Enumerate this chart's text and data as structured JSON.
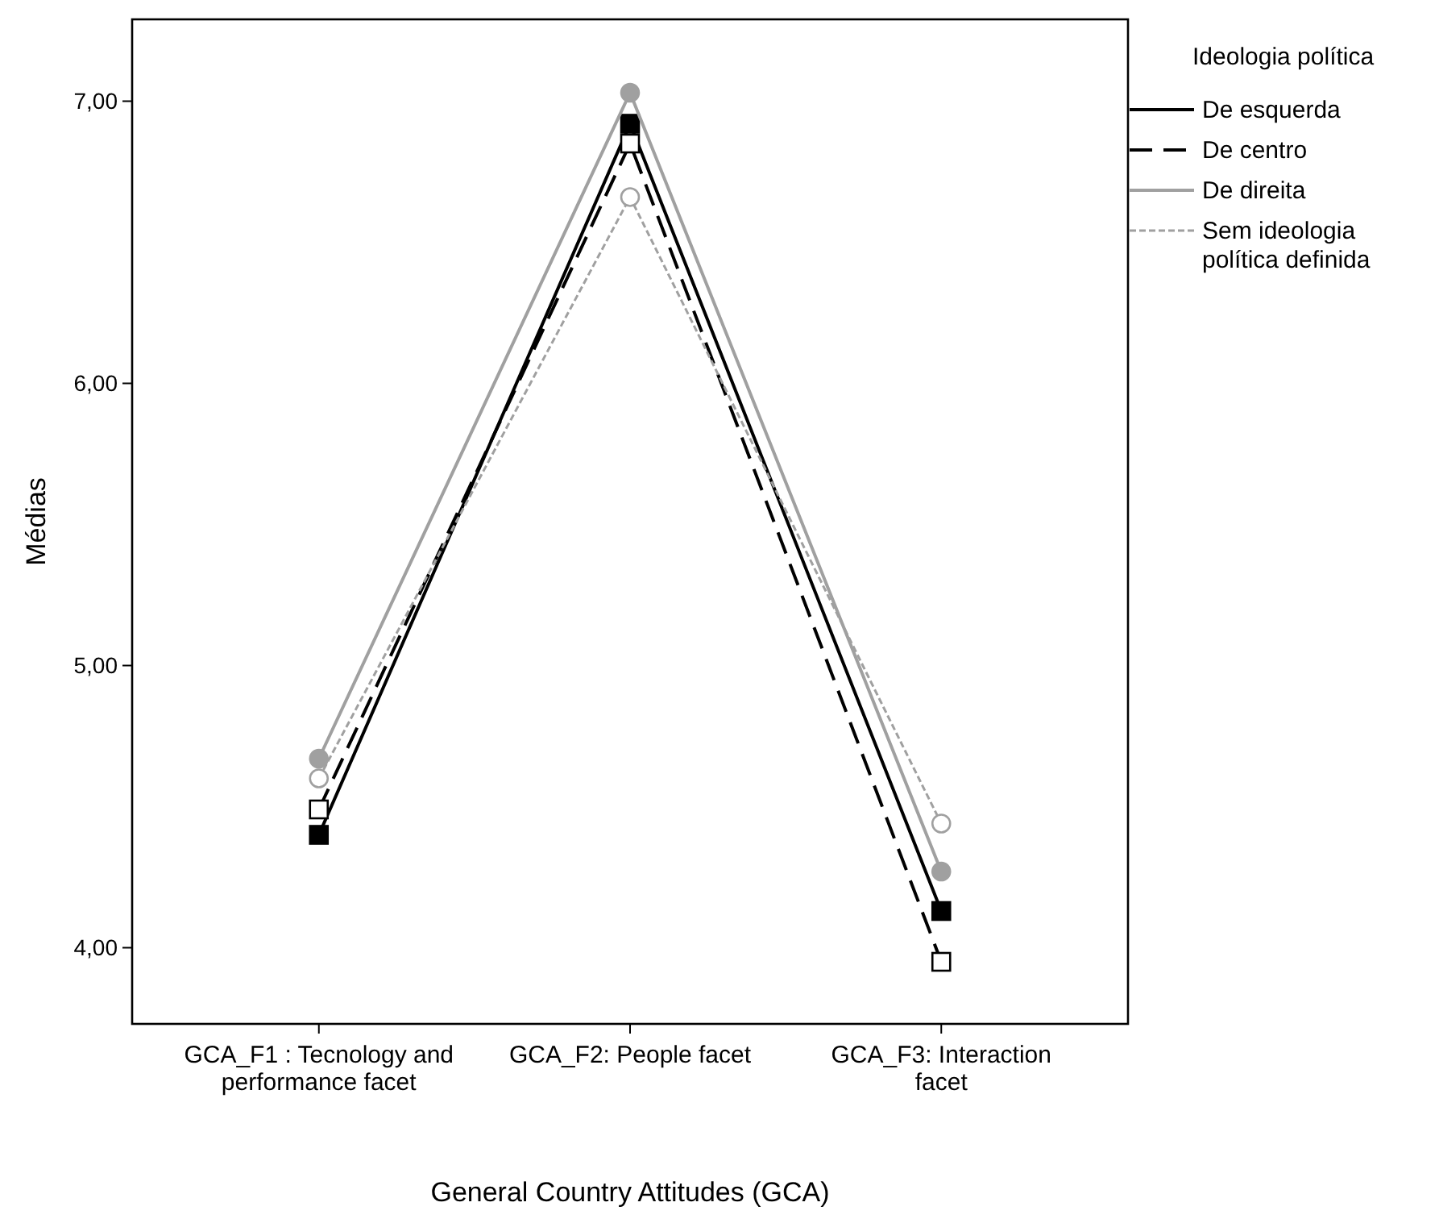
{
  "chart_data": {
    "type": "line",
    "xlabel": "General Country Attitudes (GCA)",
    "ylabel": "Médias",
    "legend_title": "Ideologia política",
    "legend": "top right",
    "categories": [
      "GCA_F1 : Tecnology and performance facet",
      "GCA_F2: People facet",
      "GCA_F3: Interaction facet"
    ],
    "ylim": [
      3.73,
      7.29
    ],
    "yticks": [
      {
        "value": 4,
        "label": "4,00"
      },
      {
        "value": 5,
        "label": "5,00"
      },
      {
        "value": 6,
        "label": "6,00"
      },
      {
        "value": 7,
        "label": "7,00"
      }
    ],
    "grid": false,
    "series": [
      {
        "name": "De esquerda",
        "color": "#000000",
        "line_style": "solid",
        "marker": "square",
        "values": [
          4.4,
          6.92,
          4.13
        ]
      },
      {
        "name": "De centro",
        "color": "#000000",
        "line_style": "dashed",
        "marker": "square",
        "values": [
          4.49,
          6.85,
          3.95
        ]
      },
      {
        "name": "De direita",
        "color": "#a0a0a0",
        "line_style": "solid",
        "marker": "circle",
        "values": [
          4.67,
          7.03,
          4.27
        ]
      },
      {
        "name": "Sem ideologia política definida",
        "color": "#a0a0a0",
        "line_style": "dotted",
        "marker": "circle",
        "values": [
          4.6,
          6.66,
          4.44
        ]
      }
    ]
  }
}
